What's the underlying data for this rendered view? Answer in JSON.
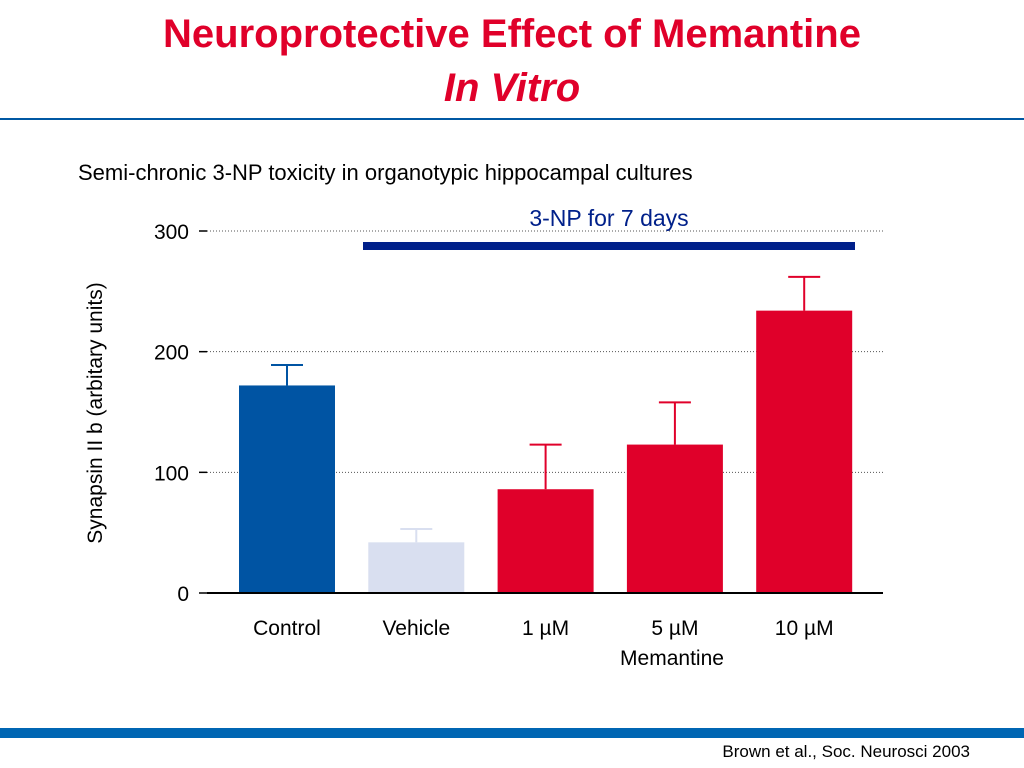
{
  "slide": {
    "title_line1": "Neuroprotective Effect of Memantine",
    "title_line2": "In Vitro",
    "subtitle": "Semi-chronic 3-NP toxicity in organotypic hippocampal cultures",
    "citation": "Brown et al., Soc. Neurosci 2003",
    "colors": {
      "title": "#e0002a",
      "rule": "#0058a3"
    }
  },
  "chart_data": {
    "type": "bar",
    "title": "",
    "ylabel": "Synapsin II b (arbitary units)",
    "xlabel": "",
    "ylim": [
      0,
      300
    ],
    "yticks": [
      0,
      100,
      200,
      300
    ],
    "grid": true,
    "categories": [
      "Control",
      "Vehicle",
      "1 µM",
      "5 µM",
      "10 µM"
    ],
    "values": [
      172,
      42,
      86,
      123,
      234
    ],
    "errors": [
      17,
      11,
      37,
      35,
      28
    ],
    "bar_colors": [
      "#0054a3",
      "#d9dff0",
      "#e0002a",
      "#e0002a",
      "#e0002a"
    ],
    "group_label": "Memantine",
    "treatment_bar": {
      "label": "3-NP for 7 days",
      "color": "#00208a"
    }
  }
}
